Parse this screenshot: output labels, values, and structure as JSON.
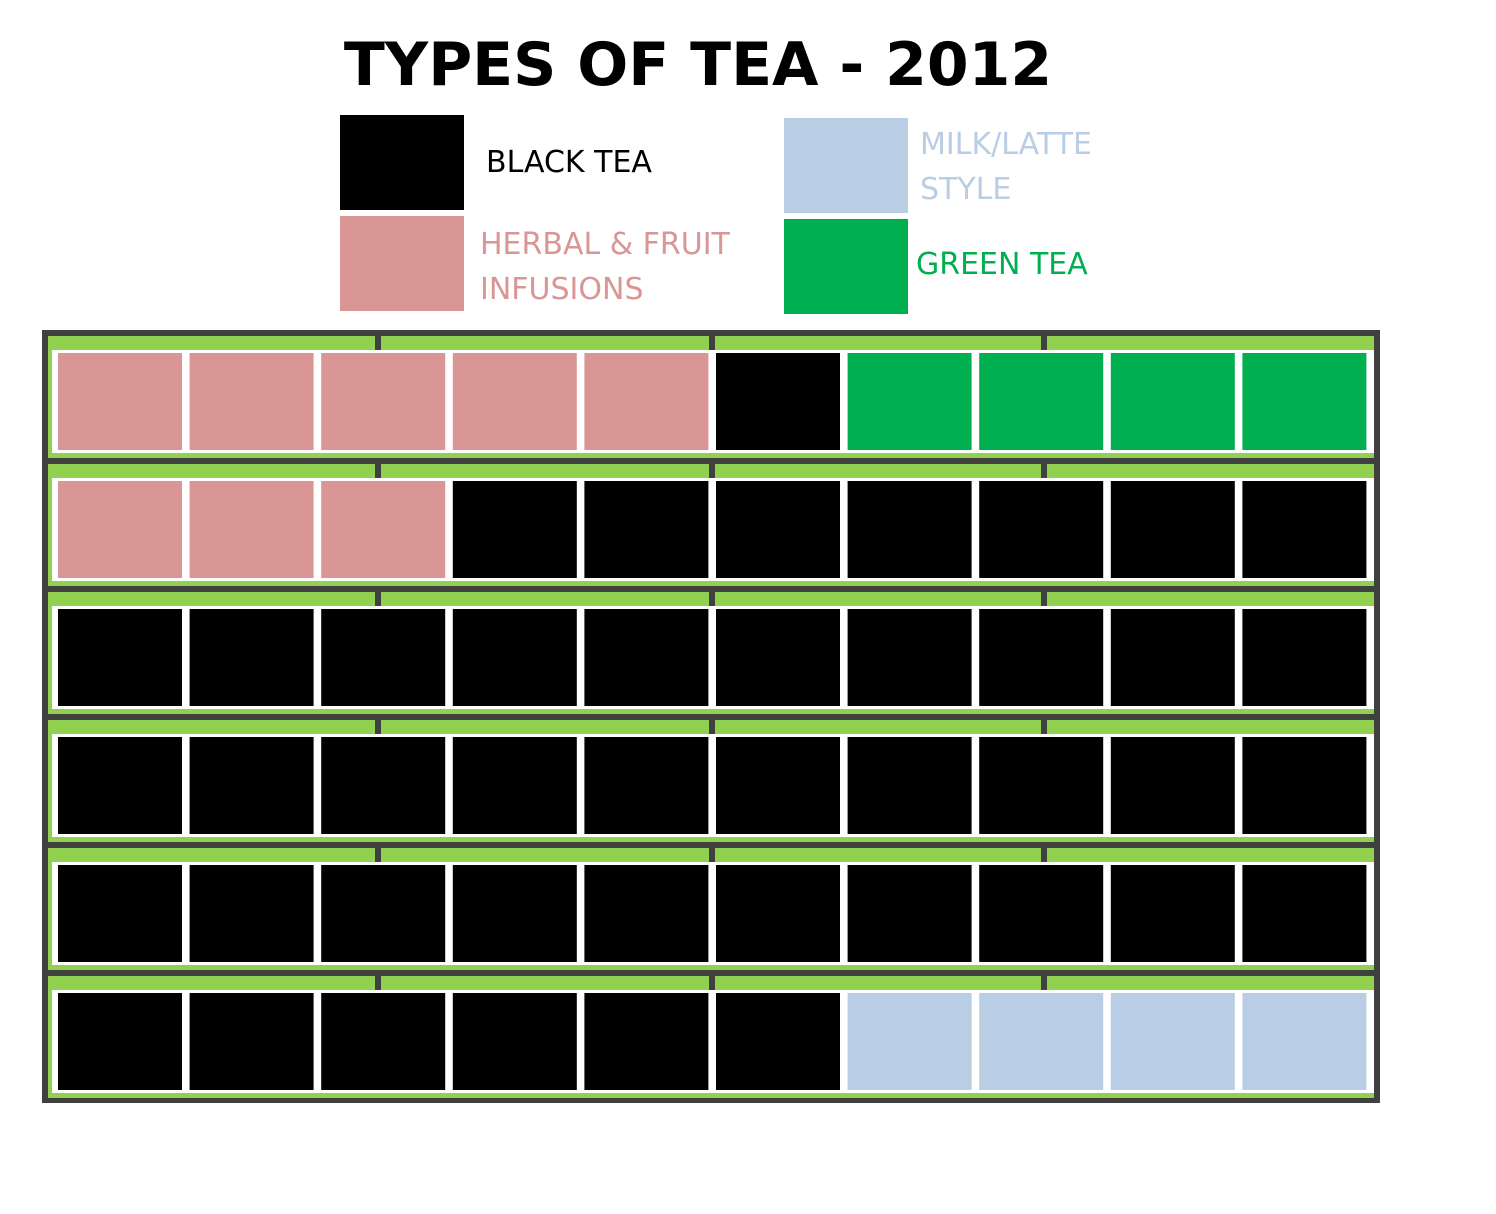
{
  "chart_data": {
    "type": "waffle",
    "title": "TYPES OF TEA - 2012",
    "categories": [
      null,
      null,
      null,
      null,
      null,
      null
    ],
    "series": [
      {
        "name": "HERBAL & FRUIT INFUSIONS",
        "color": "#da9694",
        "values": [
          5,
          3,
          0,
          0,
          0,
          0
        ]
      },
      {
        "name": "BLACK TEA",
        "color": "#000000",
        "values": [
          1,
          7,
          10,
          10,
          10,
          6
        ]
      },
      {
        "name": "GREEN TEA",
        "color": "#00b050",
        "values": [
          4,
          0,
          0,
          0,
          0,
          0
        ]
      },
      {
        "name": "MILK/LATTE STYLE",
        "color": "#b9cde5",
        "values": [
          0,
          0,
          0,
          0,
          0,
          4
        ]
      }
    ]
  }
}
